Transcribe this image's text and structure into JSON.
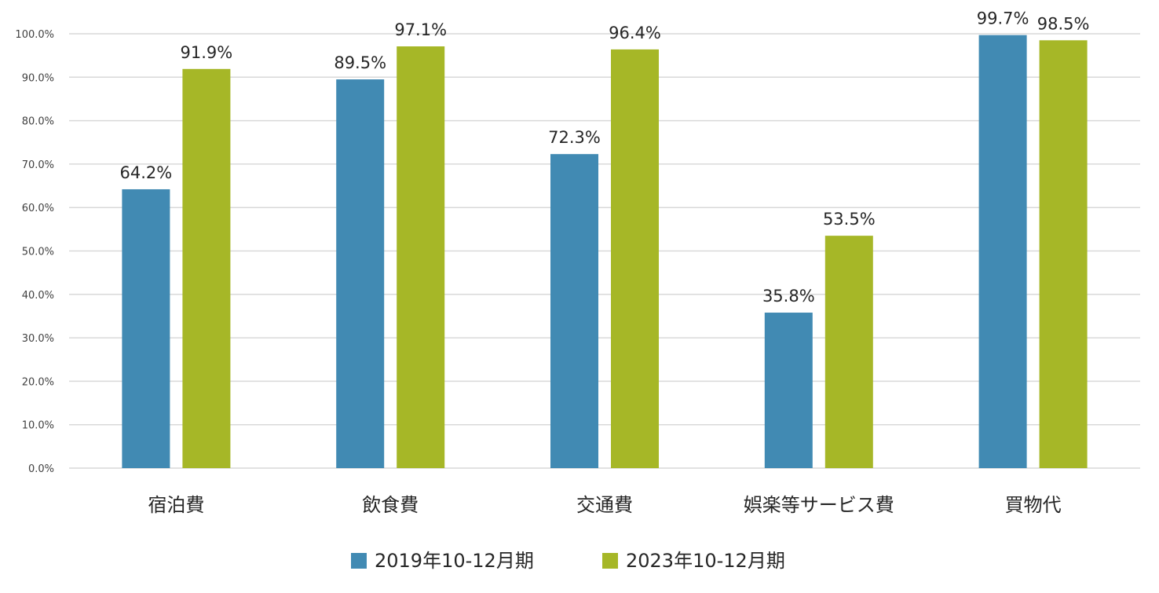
{
  "chart_data": {
    "type": "bar",
    "title": "",
    "xlabel": "",
    "ylabel": "",
    "categories": [
      "宿泊費",
      "飲食費",
      "交通費",
      "娯楽等サービス費",
      "買物代"
    ],
    "series": [
      {
        "name": "2019年10-12月期",
        "color": "#418AB3",
        "values": [
          64.2,
          89.5,
          72.3,
          35.8,
          99.7
        ],
        "labels": [
          "64.2%",
          "89.5%",
          "72.3%",
          "35.8%",
          "99.7%"
        ]
      },
      {
        "name": "2023年10-12月期",
        "color": "#A6B727",
        "values": [
          91.9,
          97.1,
          96.4,
          53.5,
          98.5
        ],
        "labels": [
          "91.9%",
          "97.1%",
          "96.4%",
          "53.5%",
          "98.5%"
        ]
      }
    ],
    "ylim": [
      0,
      100
    ],
    "yticks": [
      0,
      10,
      20,
      30,
      40,
      50,
      60,
      70,
      80,
      90,
      100
    ],
    "ytick_labels": [
      "0.0%",
      "10.0%",
      "20.0%",
      "30.0%",
      "40.0%",
      "50.0%",
      "60.0%",
      "70.0%",
      "80.0%",
      "90.0%",
      "100.0%"
    ],
    "grid": true,
    "legend_position": "bottom"
  }
}
